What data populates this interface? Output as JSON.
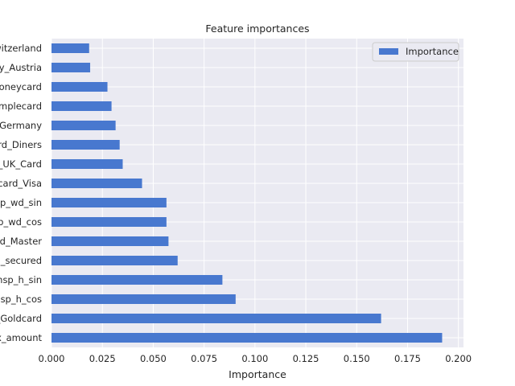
{
  "chart_data": {
    "type": "bar",
    "orientation": "horizontal",
    "title": "Feature importances",
    "xlabel": "Importance",
    "ylabel": "",
    "xlim": [
      0,
      0.2025
    ],
    "xticks": [
      0.0,
      0.025,
      0.05,
      0.075,
      0.1,
      0.125,
      0.15,
      0.175,
      0.2
    ],
    "xtick_labels": [
      "0.000",
      "0.025",
      "0.050",
      "0.075",
      "0.100",
      "0.125",
      "0.150",
      "0.175",
      "0.200"
    ],
    "categories": [
      "x_amount",
      "_Goldcard",
      "sp_h_cos",
      "nsp_h_sin",
      "d_secured",
      "d_Master",
      "p_wd_cos",
      "sp_wd_sin",
      "card_Visa",
      "_UK_Card",
      "rd_Diners",
      "_Germany",
      "implecard",
      "Honeycard",
      "ry_Austria",
      "witzerland"
    ],
    "series": [
      {
        "name": "Importance",
        "values": [
          0.192,
          0.162,
          0.0905,
          0.084,
          0.062,
          0.0575,
          0.0565,
          0.0565,
          0.0445,
          0.035,
          0.0335,
          0.0315,
          0.0295,
          0.0275,
          0.019,
          0.0185
        ]
      }
    ],
    "grid": true,
    "legend_position": "top-right",
    "colors": {
      "bar": "#4878cf",
      "plot_bg": "#eaeaf2",
      "grid": "#ffffff"
    }
  }
}
